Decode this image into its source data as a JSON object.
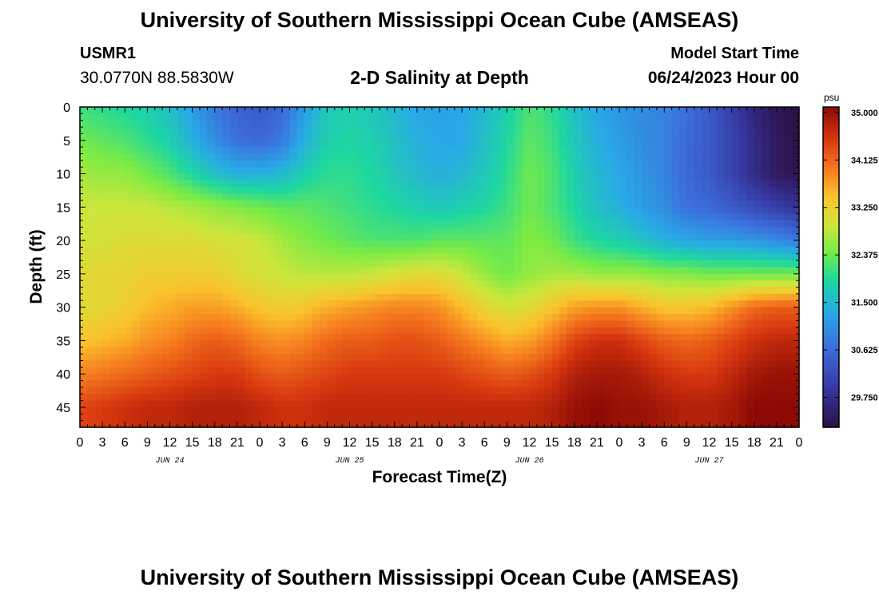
{
  "page": {
    "title_top": "University of Southern Mississippi Ocean Cube (AMSEAS)",
    "title_bottom": "University of Southern Mississippi Ocean Cube (AMSEAS)",
    "station": "USMR1",
    "coords": "30.0770N  88.5830W",
    "subtitle": "2-D Salinity at Depth",
    "model_start_label": "Model Start Time",
    "model_start_value": "06/24/2023 Hour 00"
  },
  "chart_data": {
    "type": "heatmap",
    "title": "2-D Salinity at Depth",
    "xlabel": "Forecast Time(Z)",
    "ylabel": "Depth (ft)",
    "x_hours": [
      0,
      3,
      6,
      9,
      12,
      15,
      18,
      21,
      24,
      27,
      30,
      33,
      36,
      39,
      42,
      45,
      48,
      51,
      54,
      57,
      60,
      63,
      66,
      69,
      72,
      75,
      78,
      81,
      84,
      87,
      90,
      93,
      96
    ],
    "x_tick_labels": [
      "0",
      "3",
      "6",
      "9",
      "12",
      "15",
      "18",
      "21",
      "0",
      "3",
      "6",
      "9",
      "12",
      "15",
      "18",
      "21",
      "0",
      "3",
      "6",
      "9",
      "12",
      "15",
      "18",
      "21",
      "0",
      "3",
      "6",
      "9",
      "12",
      "15",
      "18",
      "21",
      "0"
    ],
    "day_labels": [
      {
        "label": "JUN 24",
        "hour": 12
      },
      {
        "label": "JUN 25",
        "hour": 36
      },
      {
        "label": "JUN 26",
        "hour": 60
      },
      {
        "label": "JUN 27",
        "hour": 84
      }
    ],
    "depths_ft": [
      0,
      5,
      10,
      15,
      20,
      25,
      30,
      35,
      40,
      45
    ],
    "y_tick_labels": [
      "0",
      "5",
      "10",
      "15",
      "20",
      "25",
      "30",
      "35",
      "40",
      "45"
    ],
    "ylim": [
      0,
      48
    ],
    "xlim": [
      0,
      96
    ],
    "values_psu": [
      [
        32.1,
        32.0,
        31.9,
        31.8,
        31.6,
        31.2,
        30.8,
        30.5,
        30.4,
        30.6,
        31.2,
        31.7,
        31.8,
        31.7,
        31.5,
        31.3,
        31.2,
        31.3,
        31.5,
        31.8,
        32.2,
        32.0,
        31.6,
        31.3,
        31.1,
        31.0,
        30.9,
        30.7,
        30.4,
        30.0,
        29.6,
        29.3,
        29.2
      ],
      [
        32.4,
        32.3,
        32.2,
        32.0,
        31.8,
        31.4,
        31.0,
        30.7,
        30.6,
        30.8,
        31.4,
        31.8,
        31.9,
        31.8,
        31.6,
        31.4,
        31.3,
        31.3,
        31.6,
        31.9,
        32.3,
        32.1,
        31.7,
        31.4,
        31.2,
        31.0,
        30.9,
        30.6,
        30.4,
        30.1,
        29.7,
        29.4,
        29.2
      ],
      [
        32.7,
        32.6,
        32.6,
        32.4,
        32.2,
        31.9,
        31.6,
        31.4,
        31.4,
        31.5,
        31.8,
        32.0,
        32.0,
        31.9,
        31.7,
        31.5,
        31.4,
        31.5,
        31.7,
        32.0,
        32.4,
        32.2,
        31.8,
        31.5,
        31.3,
        31.1,
        30.9,
        30.6,
        30.4,
        30.1,
        29.7,
        29.4,
        29.3
      ],
      [
        32.9,
        32.9,
        32.9,
        32.9,
        32.8,
        32.7,
        32.6,
        32.5,
        32.4,
        32.3,
        32.3,
        32.2,
        32.1,
        32.0,
        31.9,
        31.8,
        31.7,
        31.8,
        31.9,
        32.1,
        32.4,
        32.2,
        31.9,
        31.6,
        31.4,
        31.2,
        31.0,
        30.7,
        30.6,
        30.4,
        30.2,
        30.0,
        29.8
      ],
      [
        33.0,
        33.0,
        33.1,
        33.1,
        33.1,
        33.1,
        33.0,
        33.0,
        32.9,
        32.7,
        32.5,
        32.4,
        32.3,
        32.2,
        32.2,
        32.2,
        32.3,
        32.3,
        32.3,
        32.3,
        32.5,
        32.4,
        32.1,
        31.9,
        31.8,
        31.6,
        31.4,
        31.3,
        31.2,
        31.2,
        31.1,
        31.0,
        30.8
      ],
      [
        33.1,
        33.2,
        33.2,
        33.3,
        33.3,
        33.3,
        33.3,
        33.1,
        33.0,
        32.9,
        32.8,
        32.8,
        32.8,
        32.9,
        33.0,
        33.1,
        33.1,
        32.9,
        32.6,
        32.4,
        32.6,
        32.7,
        32.7,
        32.6,
        32.6,
        32.6,
        32.5,
        32.5,
        32.4,
        32.4,
        32.4,
        32.4,
        32.4
      ],
      [
        33.1,
        33.2,
        33.3,
        33.5,
        33.6,
        33.7,
        33.7,
        33.6,
        33.4,
        33.3,
        33.4,
        33.6,
        33.7,
        33.8,
        33.9,
        33.9,
        33.8,
        33.5,
        33.2,
        33.0,
        33.1,
        33.4,
        33.7,
        33.8,
        33.8,
        33.6,
        33.4,
        33.4,
        33.5,
        33.8,
        34.1,
        34.2,
        34.2
      ],
      [
        33.4,
        33.5,
        33.6,
        33.8,
        33.9,
        34.1,
        34.2,
        34.1,
        33.9,
        33.8,
        33.9,
        34.1,
        34.2,
        34.2,
        34.3,
        34.3,
        34.2,
        34.0,
        33.8,
        33.6,
        33.7,
        34.0,
        34.4,
        34.6,
        34.6,
        34.4,
        34.2,
        34.1,
        34.2,
        34.4,
        34.6,
        34.7,
        34.7
      ],
      [
        33.9,
        34.0,
        34.1,
        34.2,
        34.3,
        34.4,
        34.5,
        34.5,
        34.3,
        34.2,
        34.3,
        34.4,
        34.5,
        34.5,
        34.5,
        34.5,
        34.5,
        34.4,
        34.3,
        34.2,
        34.3,
        34.5,
        34.8,
        34.9,
        34.9,
        34.8,
        34.6,
        34.5,
        34.5,
        34.7,
        34.9,
        35.0,
        35.0
      ],
      [
        34.4,
        34.5,
        34.6,
        34.7,
        34.7,
        34.8,
        34.8,
        34.8,
        34.7,
        34.6,
        34.6,
        34.7,
        34.7,
        34.7,
        34.7,
        34.7,
        34.7,
        34.7,
        34.7,
        34.7,
        34.7,
        34.8,
        35.0,
        35.1,
        35.0,
        35.0,
        34.9,
        34.8,
        34.8,
        34.9,
        35.1,
        35.1,
        35.1
      ]
    ],
    "colorbar": {
      "unit": "psu",
      "ticks": [
        "35.000",
        "34.125",
        "33.250",
        "32.375",
        "31.500",
        "30.625",
        "29.750"
      ],
      "tick_values": [
        35.0,
        34.125,
        33.25,
        32.375,
        31.5,
        30.625,
        29.75
      ],
      "min": 29.2,
      "max": 35.1
    }
  }
}
